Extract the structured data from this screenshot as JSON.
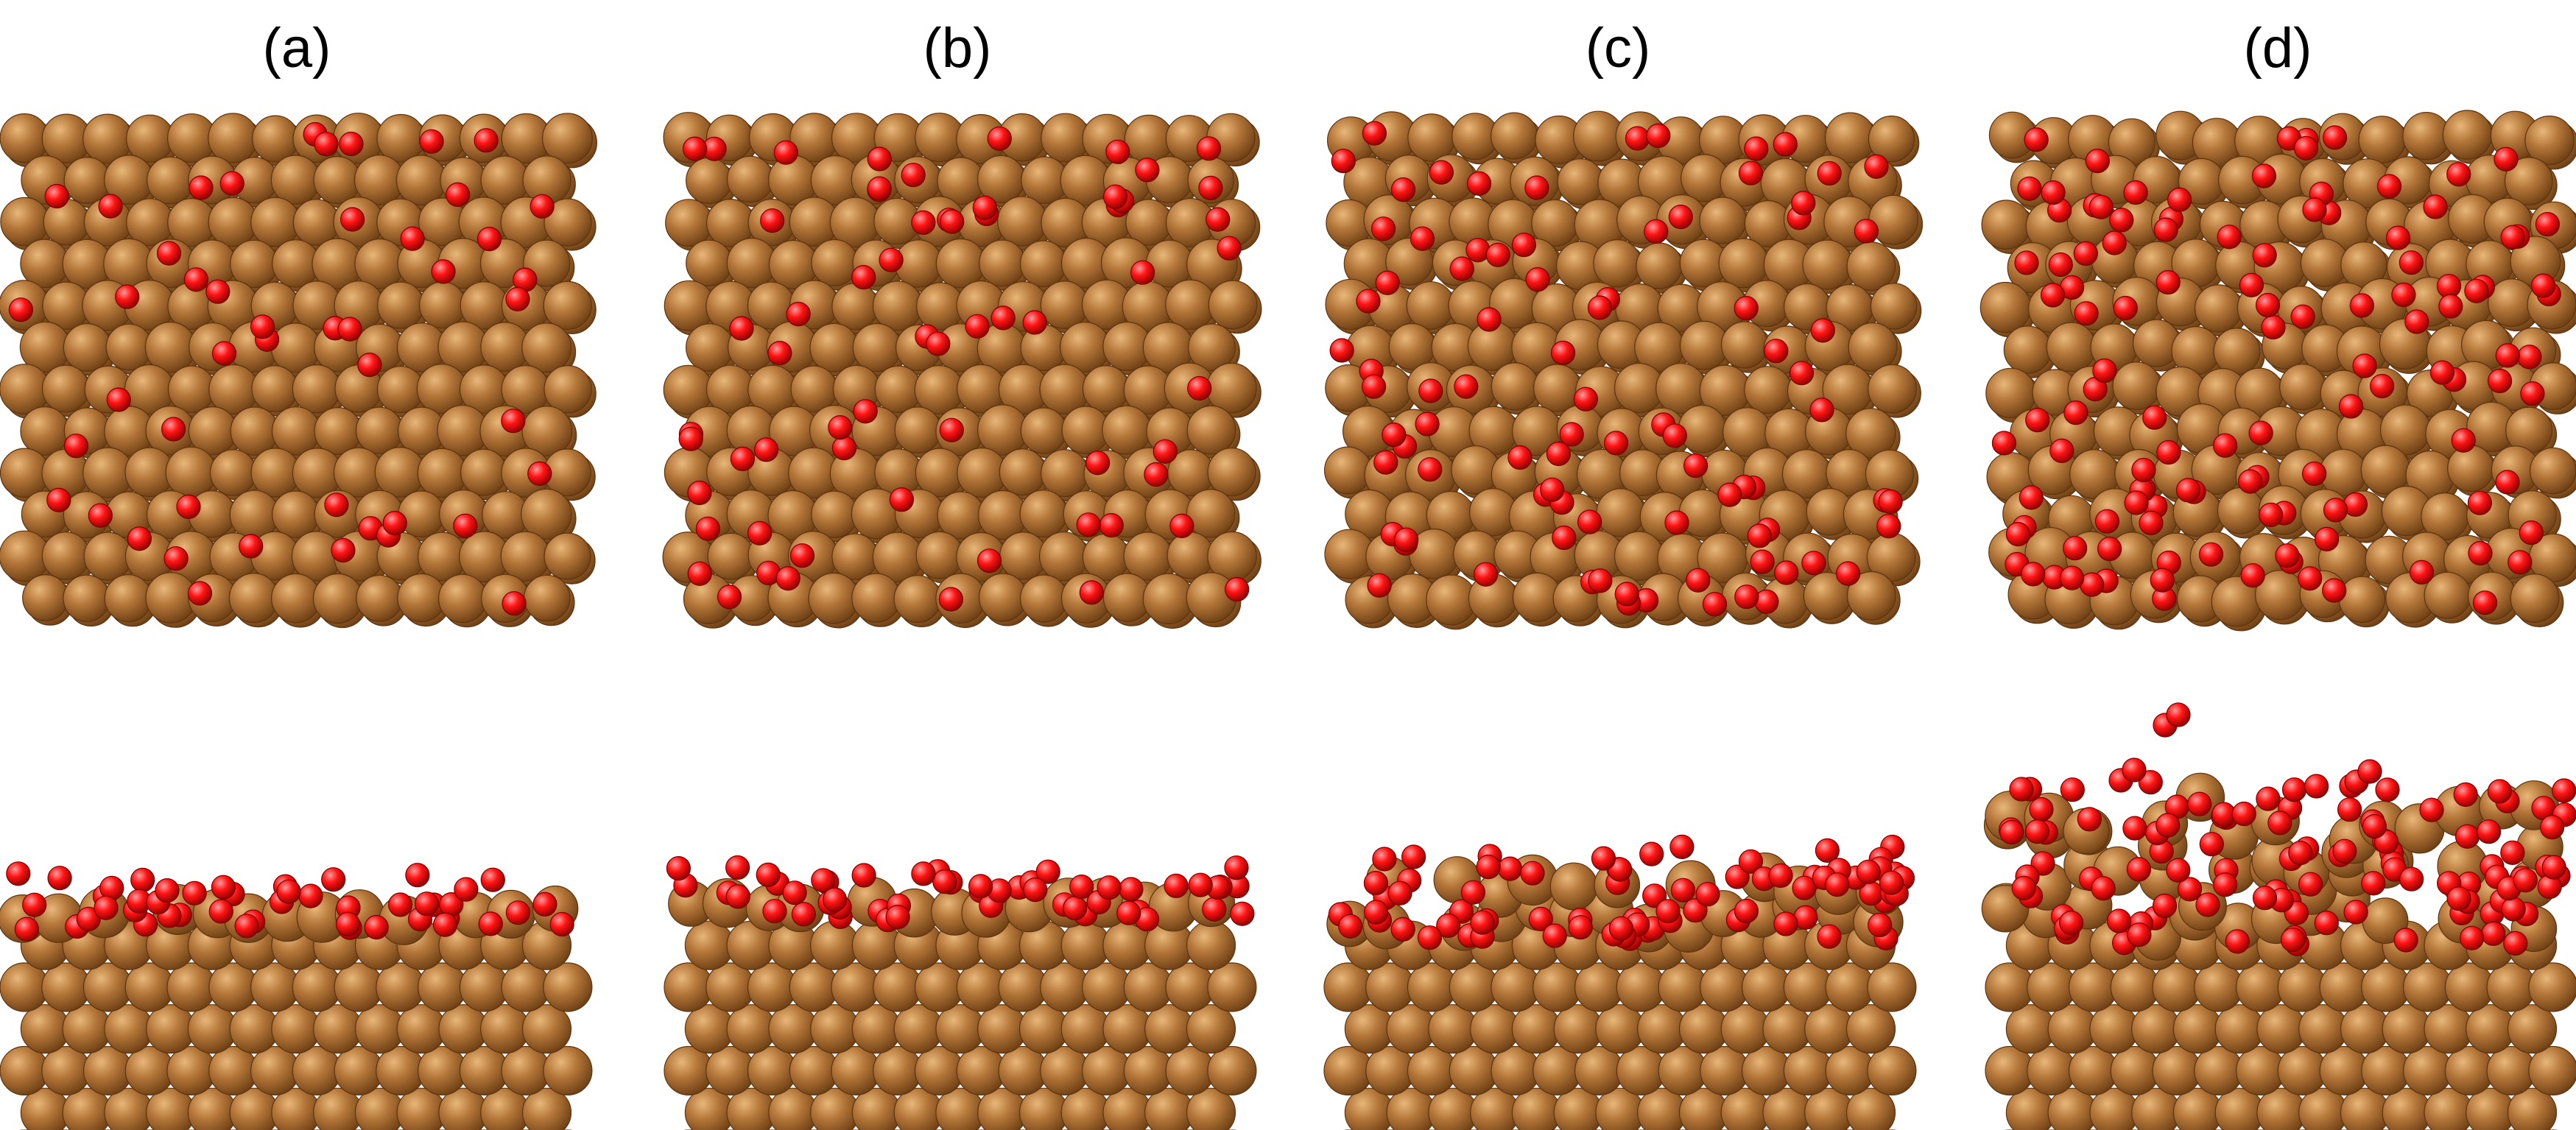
{
  "panels": [
    {
      "label": "(a)",
      "oxygen_density": 0.18,
      "top_disorder": 0.1,
      "surface_roughness": 0.15,
      "oxide_depth": 0.05
    },
    {
      "label": "(b)",
      "oxygen_density": 0.24,
      "top_disorder": 0.2,
      "surface_roughness": 0.25,
      "oxide_depth": 0.06
    },
    {
      "label": "(c)",
      "oxygen_density": 0.33,
      "top_disorder": 0.55,
      "surface_roughness": 0.45,
      "oxide_depth": 0.22
    },
    {
      "label": "(d)",
      "oxygen_density": 0.45,
      "top_disorder": 0.85,
      "surface_roughness": 1.0,
      "oxide_depth": 0.48
    }
  ],
  "colors": {
    "copper": "#b5773a",
    "copper_highlight": "#e9b77a",
    "copper_shadow": "#6e3f14",
    "oxygen": "#ff1414",
    "oxygen_highlight": "#ff9c9c",
    "oxygen_shadow": "#8c0000",
    "background": "#ffffff"
  }
}
